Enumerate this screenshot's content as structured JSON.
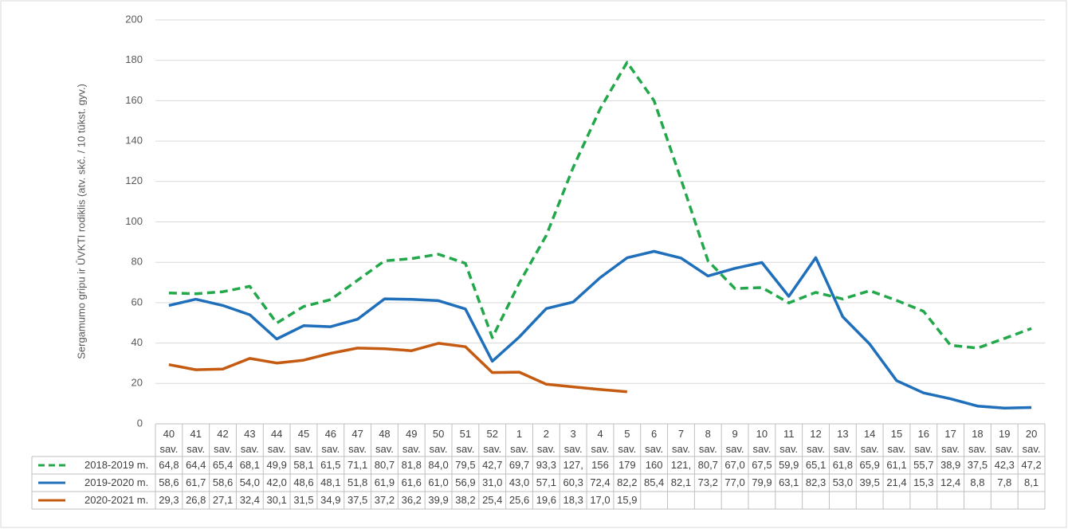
{
  "chart_data": {
    "type": "line",
    "y_label": "Sergamumo gripu ir ŪVKTI rodiklis (atv. skč. / 10 tūkst. gyv.)",
    "categories": [
      "40 sav.",
      "41 sav.",
      "42 sav.",
      "43 sav.",
      "44 sav.",
      "45 sav.",
      "46 sav.",
      "47 sav.",
      "48 sav.",
      "49 sav.",
      "50 sav.",
      "51 sav.",
      "52 sav.",
      "1 sav.",
      "2 sav.",
      "3 sav.",
      "4 sav.",
      "5 sav.",
      "6 sav.",
      "7 sav.",
      "8 sav.",
      "9 sav.",
      "10 sav.",
      "11 sav.",
      "12 sav.",
      "13 sav.",
      "14 sav.",
      "15 sav.",
      "16 sav.",
      "17 sav.",
      "18 sav.",
      "19 sav.",
      "20 sav."
    ],
    "series": [
      {
        "name": "2018-2019 m.",
        "color": "#22a84a",
        "line_style": "dashed",
        "values": [
          64.8,
          64.4,
          65.4,
          68.1,
          49.9,
          58.1,
          61.5,
          71.1,
          80.7,
          81.8,
          84.0,
          79.5,
          42.7,
          69.7,
          93.3,
          127,
          156,
          179,
          160,
          121,
          80.7,
          67.0,
          67.5,
          59.9,
          65.1,
          61.8,
          65.9,
          61.1,
          55.7,
          38.9,
          37.5,
          42.3,
          47.2
        ],
        "value_labels": [
          "64,8",
          "64,4",
          "65,4",
          "68,1",
          "49,9",
          "58,1",
          "61,5",
          "71,1",
          "80,7",
          "81,8",
          "84,0",
          "79,5",
          "42,7",
          "69,7",
          "93,3",
          "127,",
          "156",
          "179",
          "160",
          "121,",
          "80,7",
          "67,0",
          "67,5",
          "59,9",
          "65,1",
          "61,8",
          "65,9",
          "61,1",
          "55,7",
          "38,9",
          "37,5",
          "42,3",
          "47,2"
        ]
      },
      {
        "name": "2019-2020 m.",
        "color": "#1f6fba",
        "line_style": "solid",
        "values": [
          58.6,
          61.7,
          58.6,
          54.0,
          42.0,
          48.6,
          48.1,
          51.8,
          61.9,
          61.6,
          61.0,
          56.9,
          31.0,
          43.0,
          57.1,
          60.3,
          72.4,
          82.2,
          85.4,
          82.1,
          73.2,
          77.0,
          79.9,
          63.1,
          82.3,
          53.0,
          39.5,
          21.4,
          15.3,
          12.4,
          8.8,
          7.8,
          8.1
        ],
        "value_labels": [
          "58,6",
          "61,7",
          "58,6",
          "54,0",
          "42,0",
          "48,6",
          "48,1",
          "51,8",
          "61,9",
          "61,6",
          "61,0",
          "56,9",
          "31,0",
          "43,0",
          "57,1",
          "60,3",
          "72,4",
          "82,2",
          "85,4",
          "82,1",
          "73,2",
          "77,0",
          "79,9",
          "63,1",
          "82,3",
          "53,0",
          "39,5",
          "21,4",
          "15,3",
          "12,4",
          "8,8",
          "7,8",
          "8,1"
        ]
      },
      {
        "name": "2020-2021 m.",
        "color": "#c55a11",
        "line_style": "solid",
        "values": [
          29.3,
          26.8,
          27.1,
          32.4,
          30.1,
          31.5,
          34.9,
          37.5,
          37.2,
          36.2,
          39.9,
          38.2,
          25.4,
          25.6,
          19.6,
          18.3,
          17.0,
          15.9,
          null,
          null,
          null,
          null,
          null,
          null,
          null,
          null,
          null,
          null,
          null,
          null,
          null,
          null,
          null
        ],
        "value_labels": [
          "29,3",
          "26,8",
          "27,1",
          "32,4",
          "30,1",
          "31,5",
          "34,9",
          "37,5",
          "37,2",
          "36,2",
          "39,9",
          "38,2",
          "25,4",
          "25,6",
          "19,6",
          "18,3",
          "17,0",
          "15,9",
          null,
          null,
          null,
          null,
          null,
          null,
          null,
          null,
          null,
          null,
          null,
          null,
          null,
          null,
          null
        ]
      }
    ],
    "ylim": [
      0,
      200
    ],
    "yticks": [
      0,
      20,
      40,
      60,
      80,
      100,
      120,
      140,
      160,
      180,
      200
    ],
    "grid": true
  }
}
